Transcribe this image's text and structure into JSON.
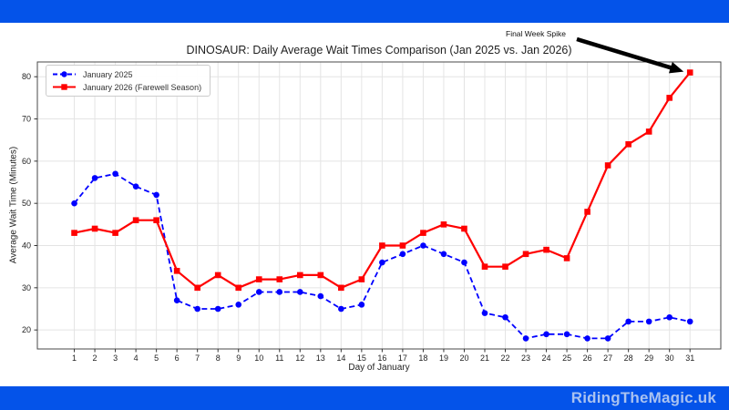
{
  "branding": {
    "top_bar_color": "#0453e9",
    "footer_bar_color": "#0453e9",
    "site_name": "RidingTheMagic.uk",
    "site_name_color": "#a9c2f0"
  },
  "chart_data": {
    "type": "line",
    "title": "DINOSAUR: Daily Average Wait Times Comparison (Jan 2025 vs. Jan 2026)",
    "xlabel": "Day of January",
    "ylabel": "Average Wait Time (Minutes)",
    "x": [
      1,
      2,
      3,
      4,
      5,
      6,
      7,
      8,
      9,
      10,
      11,
      12,
      13,
      14,
      15,
      16,
      17,
      18,
      19,
      20,
      21,
      22,
      23,
      24,
      25,
      26,
      27,
      28,
      29,
      30,
      31
    ],
    "xticks": [
      1,
      2,
      3,
      4,
      5,
      6,
      7,
      8,
      9,
      10,
      11,
      12,
      13,
      14,
      15,
      16,
      17,
      18,
      19,
      20,
      21,
      22,
      23,
      24,
      25,
      26,
      27,
      28,
      29,
      30,
      31
    ],
    "yticks": [
      20,
      30,
      40,
      50,
      60,
      70,
      80
    ],
    "xlim": [
      -0.8,
      32.5
    ],
    "ylim": [
      15.5,
      83.5
    ],
    "grid": true,
    "legend_position": "upper-left",
    "series": [
      {
        "name": "January 2025",
        "color": "#0000ff",
        "line_style": "dashed",
        "marker": "circle",
        "values": [
          50,
          56,
          57,
          54,
          52,
          27,
          25,
          25,
          26,
          29,
          29,
          29,
          28,
          25,
          26,
          36,
          38,
          40,
          38,
          36,
          24,
          23,
          18,
          19,
          19,
          18,
          18,
          22,
          22,
          23,
          22
        ]
      },
      {
        "name": "January 2026 (Farewell Season)",
        "color": "#ff0000",
        "line_style": "solid",
        "marker": "square",
        "values": [
          43,
          44,
          43,
          46,
          46,
          34,
          30,
          33,
          30,
          32,
          32,
          33,
          33,
          30,
          32,
          40,
          40,
          43,
          45,
          44,
          35,
          35,
          38,
          39,
          37,
          48,
          59,
          64,
          67,
          75,
          81
        ]
      }
    ],
    "annotation": {
      "text": "Final Week Spike",
      "target_day": 31,
      "target_value": 81,
      "arrow_color": "#000000"
    },
    "colors": {
      "grid": "#e4e4e4",
      "spine": "#4a4a4a",
      "tick_label": "#222222"
    }
  }
}
